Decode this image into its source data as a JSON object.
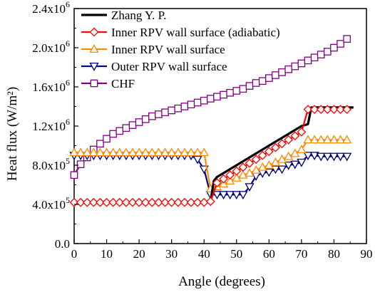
{
  "chart_data": {
    "type": "line",
    "xlabel": "Angle (degrees)",
    "ylabel": "Heat flux (W/m²)",
    "xlim": [
      0,
      90
    ],
    "ylim": [
      0,
      2400000
    ],
    "x_ticks": [
      "0",
      "10",
      "20",
      "30",
      "40",
      "50",
      "60",
      "70",
      "80",
      "90"
    ],
    "y_ticks": [
      {
        "m": "0.0",
        "e": ""
      },
      {
        "m": "4.0x10",
        "e": "5"
      },
      {
        "m": "8.0x10",
        "e": "5"
      },
      {
        "m": "1.2x10",
        "e": "6"
      },
      {
        "m": "1.6x10",
        "e": "6"
      },
      {
        "m": "2.0x10",
        "e": "6"
      },
      {
        "m": "2.4x10",
        "e": "6"
      }
    ],
    "grid": false,
    "legend_position": "top-left",
    "series": [
      {
        "name": "Zhang Y. P.",
        "color": "#000000",
        "marker": "none",
        "x": [
          0,
          2,
          4,
          6,
          8,
          10,
          12,
          14,
          16,
          18,
          20,
          22,
          24,
          26,
          28,
          30,
          32,
          34,
          36,
          38,
          40,
          42,
          43,
          44,
          46,
          48,
          50,
          52,
          54,
          56,
          58,
          60,
          62,
          64,
          66,
          68,
          70,
          72,
          73,
          74,
          76,
          78,
          80,
          82,
          84,
          86
        ],
        "values": [
          420000,
          420000,
          420000,
          420000,
          420000,
          420000,
          420000,
          420000,
          420000,
          420000,
          420000,
          420000,
          420000,
          420000,
          420000,
          420000,
          420000,
          420000,
          420000,
          420000,
          420000,
          430000,
          640000,
          680000,
          720000,
          760000,
          800000,
          840000,
          880000,
          920000,
          960000,
          1000000,
          1040000,
          1080000,
          1120000,
          1160000,
          1200000,
          1220000,
          1390000,
          1390000,
          1390000,
          1390000,
          1390000,
          1390000,
          1390000,
          1390000
        ]
      },
      {
        "name": "Inner RPV  wall surface (adiabatic)",
        "color": "#ff0000",
        "marker": "diamond",
        "x": [
          0,
          2,
          4,
          6,
          8,
          10,
          12,
          14,
          16,
          18,
          20,
          22,
          24,
          26,
          28,
          30,
          32,
          34,
          36,
          38,
          40,
          42,
          44,
          46,
          48,
          50,
          52,
          54,
          56,
          58,
          60,
          62,
          64,
          66,
          68,
          70,
          72,
          74,
          76,
          78,
          80,
          82,
          84
        ],
        "values": [
          420000,
          420000,
          420000,
          420000,
          420000,
          420000,
          420000,
          420000,
          420000,
          420000,
          420000,
          420000,
          420000,
          420000,
          420000,
          420000,
          420000,
          420000,
          420000,
          420000,
          420000,
          430000,
          620000,
          660000,
          700000,
          740000,
          780000,
          820000,
          860000,
          900000,
          940000,
          980000,
          1020000,
          1060000,
          1100000,
          1140000,
          1370000,
          1370000,
          1370000,
          1370000,
          1370000,
          1370000,
          1370000
        ]
      },
      {
        "name": "Inner RPV  wall surface",
        "color": "#ff8c00",
        "marker": "triangle-up",
        "x": [
          0,
          2,
          4,
          6,
          8,
          10,
          12,
          14,
          16,
          18,
          20,
          22,
          24,
          26,
          28,
          30,
          32,
          34,
          36,
          38,
          40,
          42,
          44,
          46,
          48,
          50,
          52,
          54,
          56,
          58,
          60,
          62,
          64,
          66,
          68,
          70,
          72,
          74,
          76,
          78,
          80,
          82,
          84
        ],
        "values": [
          930000,
          930000,
          930000,
          930000,
          930000,
          930000,
          930000,
          930000,
          930000,
          930000,
          930000,
          930000,
          930000,
          930000,
          930000,
          930000,
          930000,
          930000,
          930000,
          930000,
          930000,
          560000,
          580000,
          610000,
          640000,
          670000,
          700000,
          720000,
          750000,
          780000,
          800000,
          830000,
          860000,
          890000,
          920000,
          960000,
          1060000,
          1060000,
          1060000,
          1060000,
          1060000,
          1060000,
          1060000
        ]
      },
      {
        "name": "Outer RPV  wall surface",
        "color": "#000080",
        "marker": "triangle-down",
        "x": [
          0,
          2,
          4,
          6,
          8,
          10,
          12,
          14,
          16,
          18,
          20,
          22,
          24,
          26,
          28,
          30,
          32,
          34,
          36,
          38,
          40,
          42,
          44,
          46,
          48,
          50,
          52,
          54,
          56,
          58,
          60,
          62,
          64,
          66,
          68,
          70,
          72,
          74,
          76,
          78,
          80,
          82,
          84
        ],
        "values": [
          900000,
          900000,
          900000,
          900000,
          900000,
          900000,
          900000,
          900000,
          900000,
          900000,
          900000,
          900000,
          900000,
          900000,
          900000,
          900000,
          900000,
          900000,
          900000,
          860000,
          760000,
          500000,
          500000,
          500000,
          500000,
          500000,
          500000,
          580000,
          690000,
          720000,
          730000,
          760000,
          760000,
          800000,
          810000,
          830000,
          900000,
          900000,
          890000,
          890000,
          890000,
          890000,
          890000
        ]
      },
      {
        "name": "CHF",
        "color": "#800080",
        "marker": "square",
        "x": [
          0,
          2,
          4,
          6,
          8,
          10,
          12,
          14,
          16,
          18,
          20,
          22,
          24,
          26,
          28,
          30,
          32,
          34,
          36,
          38,
          40,
          42,
          44,
          46,
          48,
          50,
          52,
          54,
          56,
          58,
          60,
          62,
          64,
          66,
          68,
          70,
          72,
          74,
          76,
          78,
          80,
          82,
          84
        ],
        "values": [
          700000,
          810000,
          880000,
          960000,
          1020000,
          1070000,
          1120000,
          1150000,
          1180000,
          1210000,
          1240000,
          1270000,
          1300000,
          1320000,
          1340000,
          1360000,
          1380000,
          1400000,
          1420000,
          1440000,
          1460000,
          1480000,
          1500000,
          1520000,
          1540000,
          1560000,
          1580000,
          1610000,
          1640000,
          1660000,
          1690000,
          1720000,
          1750000,
          1780000,
          1810000,
          1840000,
          1870000,
          1900000,
          1930000,
          1960000,
          2000000,
          2040000,
          2090000
        ]
      }
    ]
  }
}
